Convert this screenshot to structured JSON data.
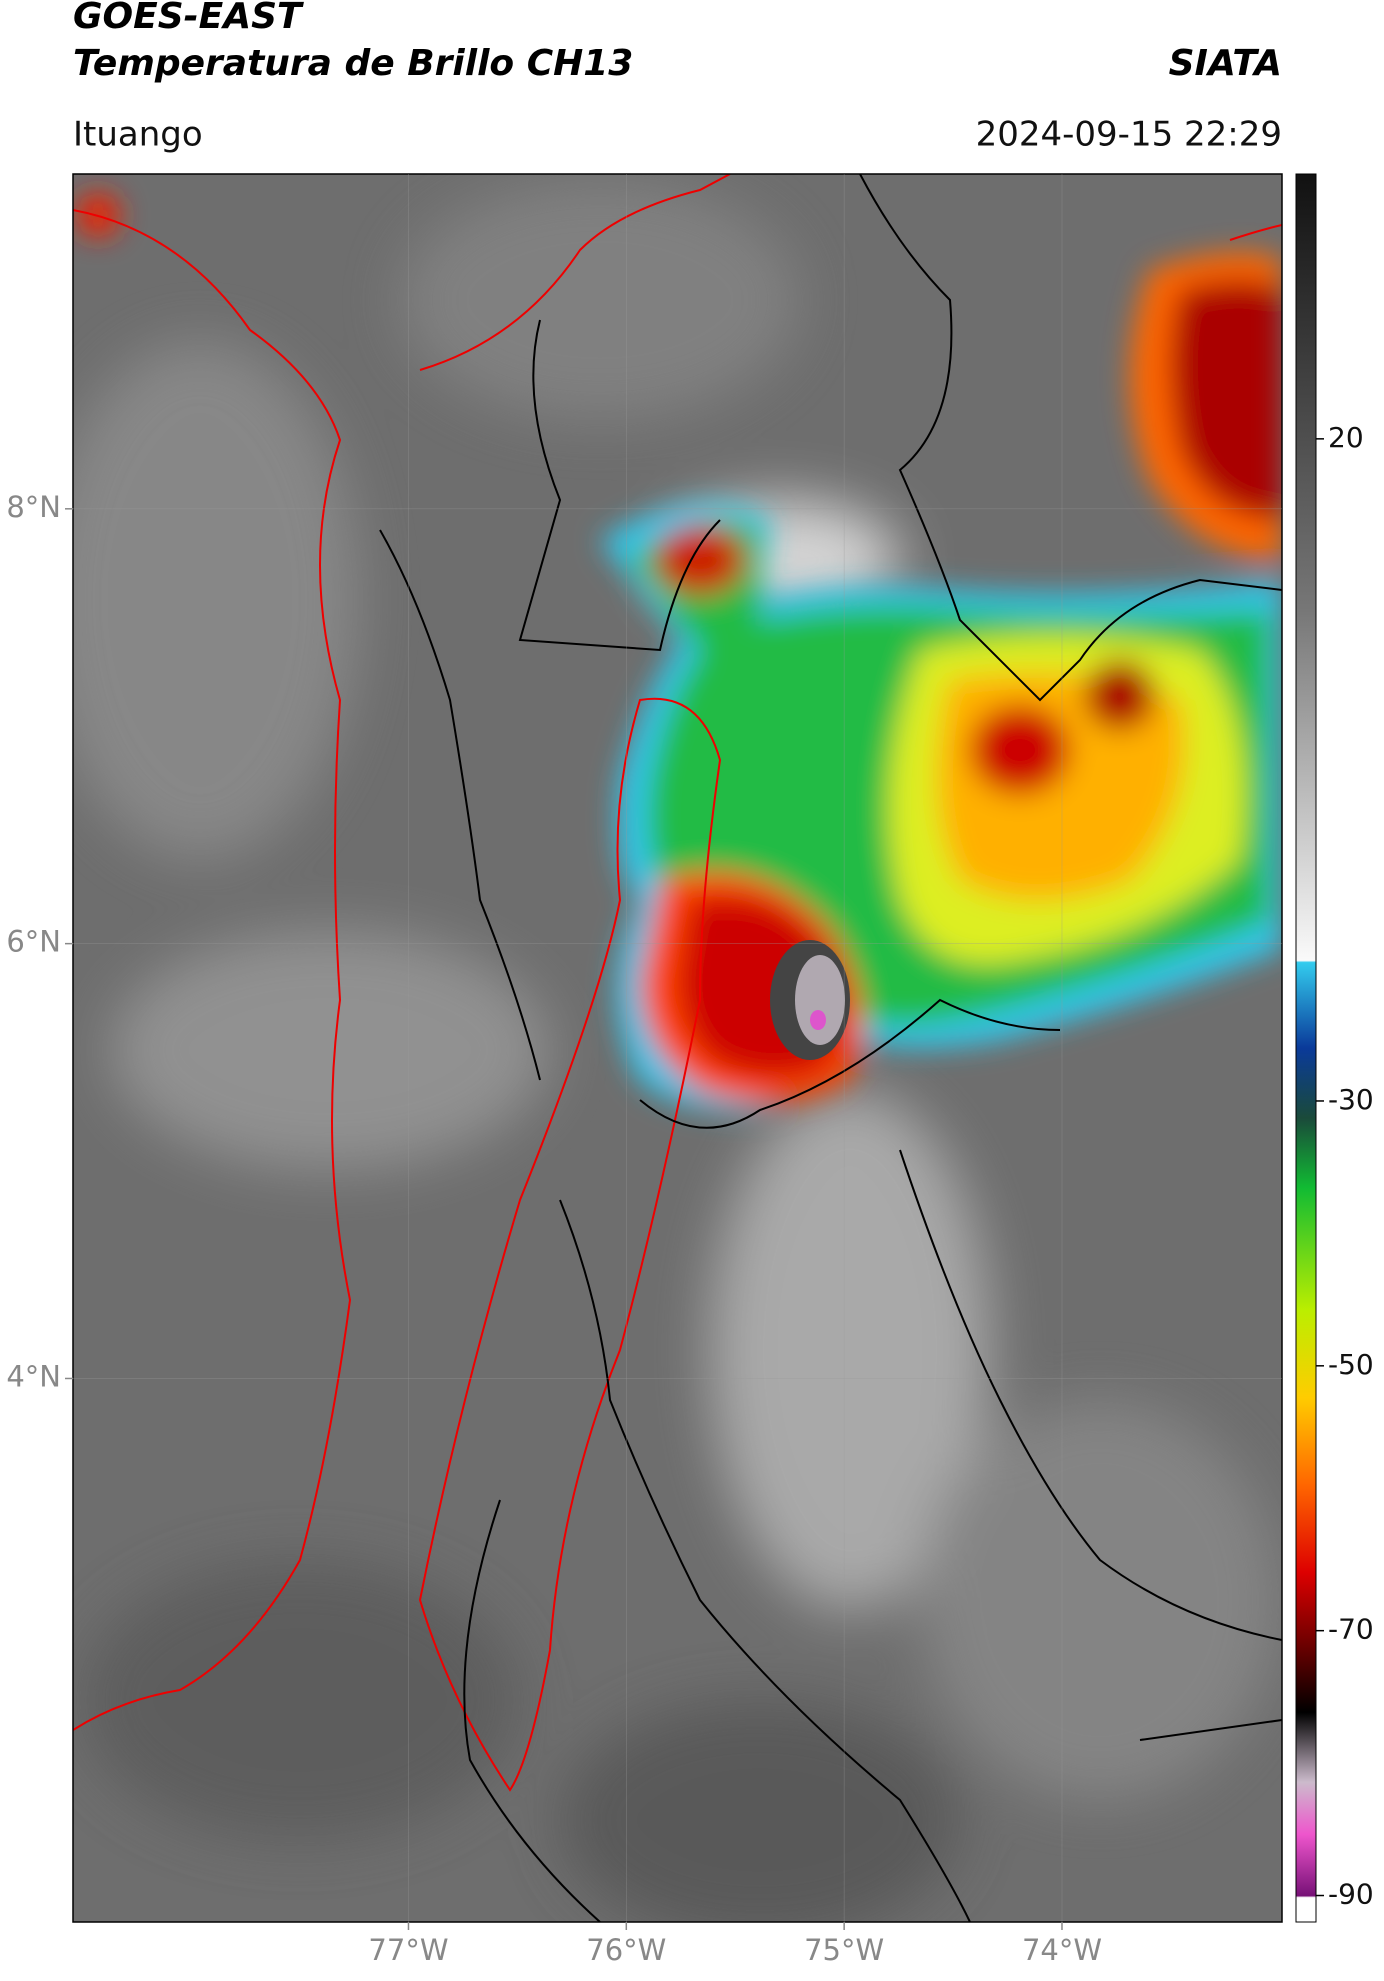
{
  "header": {
    "title": "GOES-EAST",
    "subtitle": "Temperatura de Brillo CH13",
    "source": "SIATA",
    "location": "Ituango",
    "datetime": "2024-09-15 22:29"
  },
  "map": {
    "xlim": [
      -78.54,
      -72.99
    ],
    "ylim": [
      1.5,
      9.54
    ],
    "xticks": [
      {
        "value": -77,
        "label": "77°W"
      },
      {
        "value": -76,
        "label": "76°W"
      },
      {
        "value": -75,
        "label": "75°W"
      },
      {
        "value": -74,
        "label": "74°W"
      }
    ],
    "yticks": [
      {
        "value": 8,
        "label": "8°N"
      },
      {
        "value": 6,
        "label": "6°N"
      },
      {
        "value": 4,
        "label": "4°N"
      }
    ]
  },
  "colorbar": {
    "lim": [
      -92,
      40
    ],
    "ticks": [
      20,
      -30,
      -50,
      -70,
      -90
    ]
  }
}
